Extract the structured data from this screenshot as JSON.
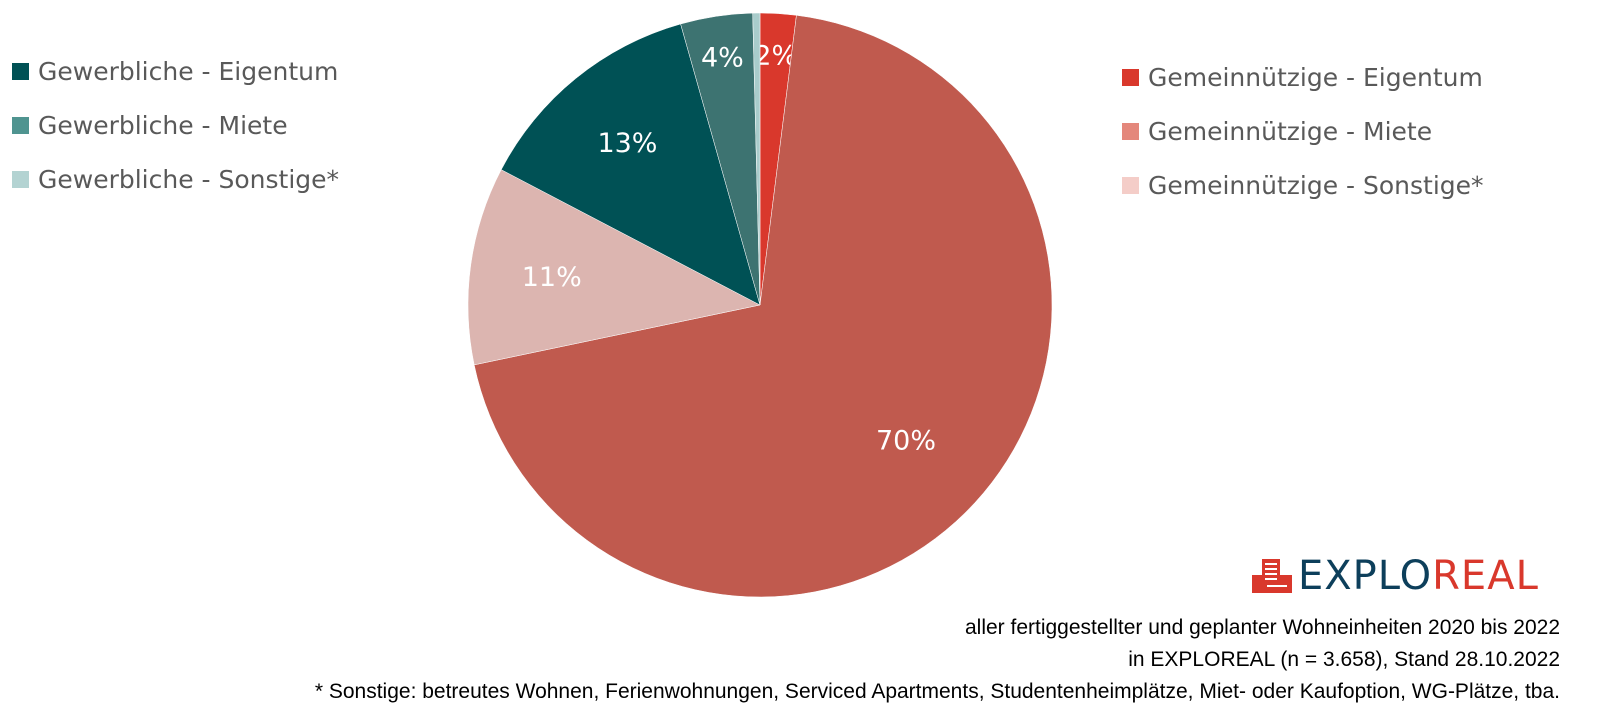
{
  "chart_data": {
    "type": "pie",
    "start": "top",
    "direction": "clockwise",
    "slices": [
      {
        "name": "Gemeinnützige - Eigentum",
        "value": 2,
        "label": "2%",
        "color": "#d9382c"
      },
      {
        "name": "Gemeinnützige - Miete",
        "value": 70,
        "label": "70%",
        "color": "#c05a4e"
      },
      {
        "name": "Gemeinnützige - Sonstige*",
        "value": 11,
        "label": "11%",
        "color": "#dcb5b0"
      },
      {
        "name": "Gewerbliche - Eigentum",
        "value": 13,
        "label": "13%",
        "color": "#005155"
      },
      {
        "name": "Gewerbliche - Miete",
        "value": 4,
        "label": "4%",
        "color": "#3d7371"
      },
      {
        "name": "Gewerbliche - Sonstige*",
        "value": 0.4,
        "label": "",
        "color": "#a9cccb"
      }
    ],
    "legend_left": [
      "Gewerbliche - Eigentum",
      "Gewerbliche - Miete",
      "Gewerbliche - Sonstige*"
    ],
    "legend_right": [
      "Gemeinnützige - Eigentum",
      "Gemeinnützige - Miete",
      "Gemeinnützige - Sonstige*"
    ]
  },
  "legend_colors": {
    "Gewerbliche - Eigentum": "#005155",
    "Gewerbliche - Miete": "#4f9490",
    "Gewerbliche - Sonstige*": "#b3d3d2",
    "Gemeinnützige - Eigentum": "#d9382c",
    "Gemeinnützige - Miete": "#e4877b",
    "Gemeinnützige - Sonstige*": "#f4cdc8"
  },
  "logo": {
    "part1": "EXPLO",
    "part2": "REAL"
  },
  "notes": {
    "line1": "aller fertiggestellter und geplanter Wohneinheiten 2020 bis 2022",
    "line2": "in EXPLOREAL (n = 3.658), Stand 28.10.2022",
    "line3": "* Sonstige: betreutes Wohnen, Ferienwohnungen, Serviced Apartments, Studentenheimplätze, Miet- oder Kaufoption, WG-Plätze, tba."
  }
}
